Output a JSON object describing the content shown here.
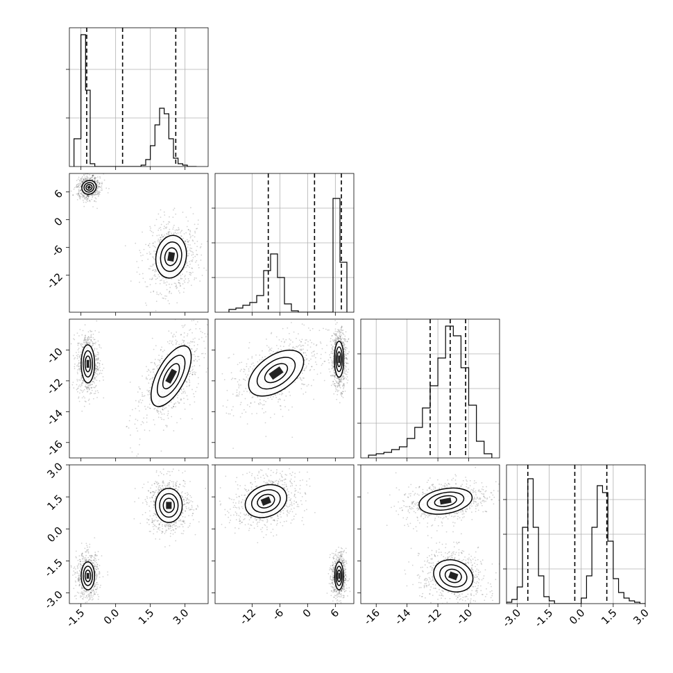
{
  "chart_data": {
    "type": "corner",
    "params": [
      {
        "range": [
          -2.0,
          4.0
        ],
        "ticks": [
          "-1.5",
          "0.0",
          "1.5",
          "3.0"
        ],
        "tick_values": [
          -1.5,
          0.0,
          1.5,
          3.0
        ],
        "quantiles": [
          -1.25,
          0.3,
          2.6
        ],
        "hist": {
          "edges": [
            -1.8,
            -1.5,
            -1.3,
            -1.1,
            -0.9,
            -0.7,
            -0.5,
            1.1,
            1.3,
            1.5,
            1.7,
            1.9,
            2.1,
            2.3,
            2.5,
            2.7,
            2.9,
            3.1,
            3.3,
            3.5
          ],
          "heights": [
            0.2,
            0.95,
            0.55,
            0.02,
            0.0,
            0.0,
            0,
            0.01,
            0.05,
            0.15,
            0.3,
            0.42,
            0.38,
            0.2,
            0.06,
            0.02,
            0.01,
            0,
            0
          ],
          "yticks": [
            0.35,
            0.7
          ]
        }
      },
      {
        "range": [
          -20.0,
          10.0
        ],
        "ticks": [
          "-12",
          "-6",
          "0",
          "6"
        ],
        "tick_values": [
          -12,
          -6,
          0,
          6
        ],
        "quantiles": [
          -8.5,
          1.5,
          7.3
        ],
        "hist": {
          "edges": [
            -17,
            -15.5,
            -14,
            -12.5,
            -11,
            -9.5,
            -8,
            -6.5,
            -5,
            -3.5,
            -2,
            -0.5,
            1,
            2.5,
            4,
            5.5,
            7,
            8.5
          ],
          "heights": [
            0.02,
            0.03,
            0.05,
            0.07,
            0.12,
            0.3,
            0.42,
            0.25,
            0.06,
            0.01,
            0,
            0,
            0,
            0,
            0,
            0.82,
            0.36
          ],
          "yticks": [
            0.25,
            0.5,
            0.75
          ]
        }
      },
      {
        "range": [
          -17.0,
          -8.0
        ],
        "ticks": [
          "-16",
          "-14",
          "-12",
          "-10"
        ],
        "tick_values": [
          -16,
          -14,
          -12,
          -10
        ],
        "quantiles": [
          -12.5,
          -11.2,
          -10.2
        ],
        "hist": {
          "edges": [
            -16.5,
            -16,
            -15.5,
            -15,
            -14.5,
            -14,
            -13.5,
            -13,
            -12.5,
            -12,
            -11.5,
            -11,
            -10.5,
            -10,
            -9.5,
            -9,
            -8.5
          ],
          "heights": [
            0.02,
            0.03,
            0.04,
            0.06,
            0.08,
            0.14,
            0.22,
            0.36,
            0.52,
            0.72,
            0.95,
            0.88,
            0.65,
            0.38,
            0.12,
            0.03
          ],
          "yticks": [
            0.25,
            0.5,
            0.75
          ]
        }
      },
      {
        "range": [
          -3.5,
          3.0
        ],
        "ticks": [
          "-3.0",
          "-1.5",
          "0.0",
          "1.5",
          "3.0"
        ],
        "tick_values": [
          -3.0,
          -1.5,
          0.0,
          1.5,
          3.0
        ],
        "quantiles": [
          -2.5,
          -0.3,
          1.2
        ],
        "hist": {
          "edges": [
            -3.5,
            -3.25,
            -3.0,
            -2.75,
            -2.5,
            -2.25,
            -2.0,
            -1.75,
            -1.5,
            -1.25,
            -1.0,
            -0.75,
            -0.5,
            -0.25,
            0.0,
            0.25,
            0.5,
            0.75,
            1.0,
            1.25,
            1.5,
            1.75,
            2.0,
            2.25,
            2.5,
            2.75,
            3.0
          ],
          "heights": [
            0.01,
            0.03,
            0.12,
            0.55,
            0.9,
            0.55,
            0.2,
            0.05,
            0.02,
            0,
            0,
            0,
            0,
            0,
            0.04,
            0.2,
            0.55,
            0.85,
            0.8,
            0.45,
            0.18,
            0.08,
            0.04,
            0.02,
            0.01,
            0
          ],
          "yticks": [
            0.25,
            0.5,
            0.75
          ]
        }
      }
    ],
    "blobs": {
      "1_0": [
        {
          "cx": -1.15,
          "cy": 7.0,
          "sx": 0.22,
          "sy": 1.0,
          "rot": -30
        },
        {
          "cx": 2.4,
          "cy": -8.0,
          "sx": 0.45,
          "sy": 3.2,
          "rot": 10
        }
      ],
      "2_0": [
        {
          "cx": -1.2,
          "cy": -10.9,
          "sx": 0.2,
          "sy": 0.85,
          "rot": 0
        },
        {
          "cx": 2.4,
          "cy": -11.7,
          "sx": 0.42,
          "sy": 1.5,
          "rot": 28
        }
      ],
      "2_1": [
        {
          "cx": -6.8,
          "cy": -11.5,
          "sx": 2.6,
          "sy": 1.4,
          "rot": 55
        },
        {
          "cx": 6.8,
          "cy": -10.6,
          "sx": 0.7,
          "sy": 0.8,
          "rot": 0
        }
      ],
      "3_0": [
        {
          "cx": -1.2,
          "cy": -2.2,
          "sx": 0.2,
          "sy": 0.45,
          "rot": 0
        },
        {
          "cx": 2.3,
          "cy": 1.1,
          "sx": 0.4,
          "sy": 0.55,
          "rot": 0
        }
      ],
      "3_1": [
        {
          "cx": -9.0,
          "cy": 1.3,
          "sx": 3.2,
          "sy": 0.5,
          "rot": -22
        },
        {
          "cx": 6.8,
          "cy": -2.2,
          "sx": 0.65,
          "sy": 0.45,
          "rot": 0
        }
      ],
      "3_2": [
        {
          "cx": -11.5,
          "cy": 1.3,
          "sx": 1.2,
          "sy": 0.4,
          "rot": -10
        },
        {
          "cx": -11.0,
          "cy": -2.2,
          "sx": 0.9,
          "sy": 0.5,
          "rot": 20
        }
      ]
    },
    "grid": true
  }
}
